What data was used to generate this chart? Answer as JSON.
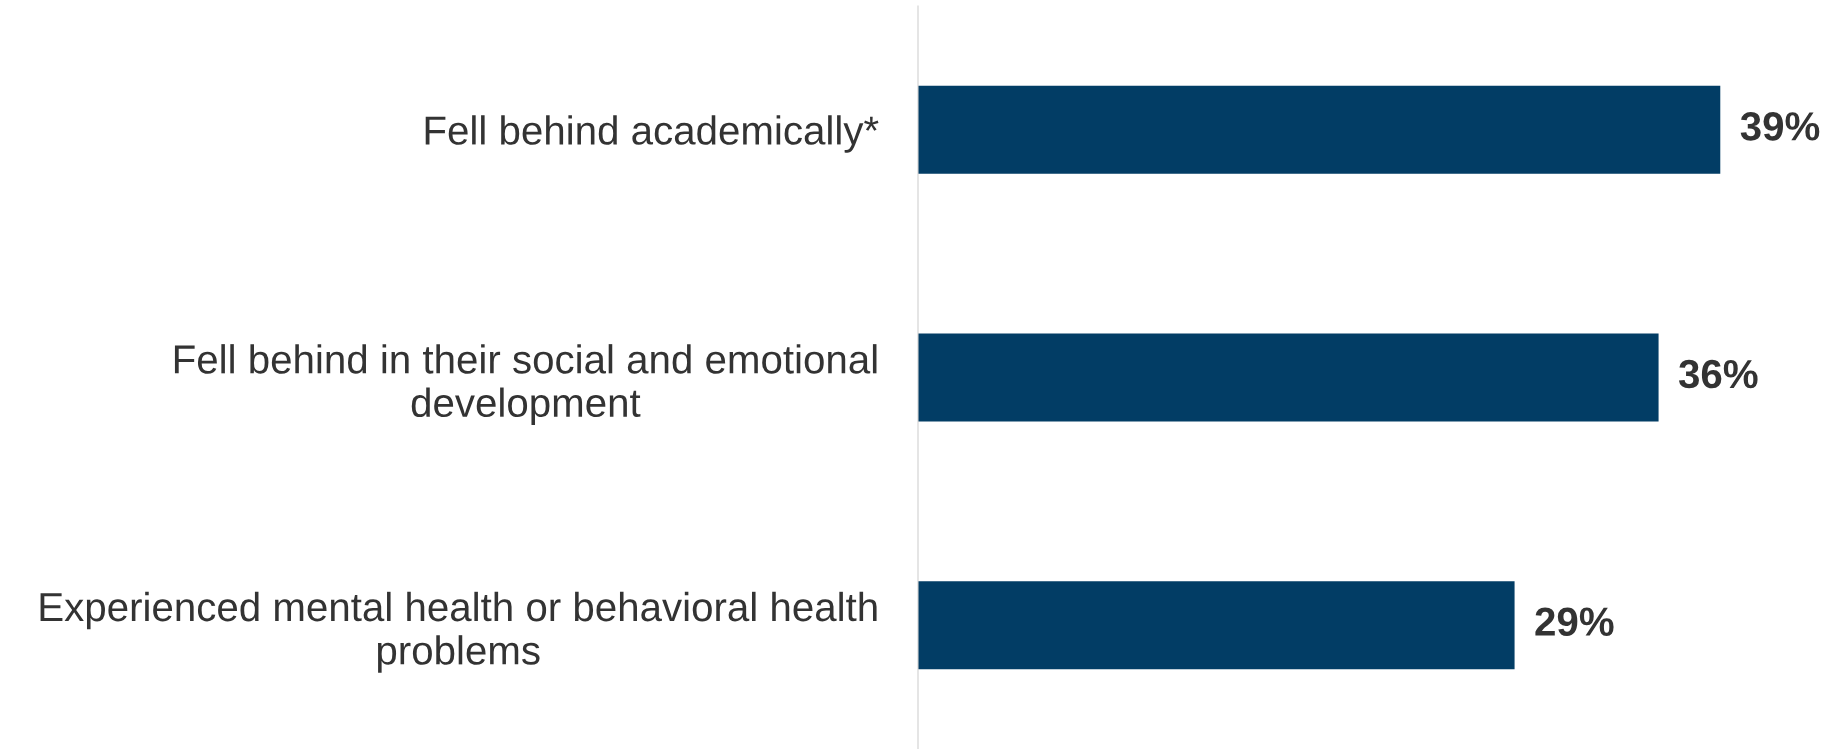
{
  "chart_data": {
    "type": "bar",
    "orientation": "horizontal",
    "categories": [
      "Fell behind academically*",
      "Fell behind in their social and emotional development",
      "Experienced mental health or behavioral health problems"
    ],
    "values": [
      39,
      36,
      29
    ],
    "color": "#023d65",
    "data_labels": true,
    "value_labels": [
      "39%",
      "36%",
      "29%"
    ]
  }
}
